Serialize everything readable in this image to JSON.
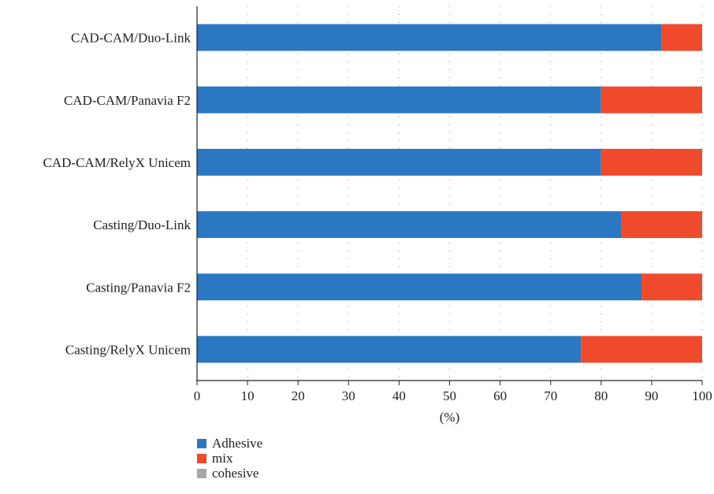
{
  "chart_data": {
    "type": "bar",
    "orientation": "horizontal",
    "stacked": true,
    "categories": [
      "CAD-CAM/Duo-Link",
      "CAD-CAM/Panavia F2",
      "CAD-CAM/RelyX Unicem",
      "Casting/Duo-Link",
      "Casting/Panavia F2",
      "Casting/RelyX Unicem"
    ],
    "series": [
      {
        "name": "Adhesive",
        "color": "#2a78c2",
        "values": [
          92,
          80,
          80,
          84,
          88,
          76
        ]
      },
      {
        "name": "mix",
        "color": "#ef4a2c",
        "values": [
          8,
          20,
          20,
          16,
          12,
          24
        ]
      },
      {
        "name": "cohesive",
        "color": "#a6a6a6",
        "values": [
          0,
          0,
          0,
          0,
          0,
          0
        ]
      }
    ],
    "xlabel": "(%)",
    "ylabel": "",
    "xlim": [
      0,
      100
    ],
    "xticks": [
      "0",
      "10",
      "20",
      "30",
      "40",
      "50",
      "60",
      "70",
      "80",
      "90",
      "100"
    ],
    "grid": "vertical dotted",
    "legend_position": "bottom-left"
  }
}
